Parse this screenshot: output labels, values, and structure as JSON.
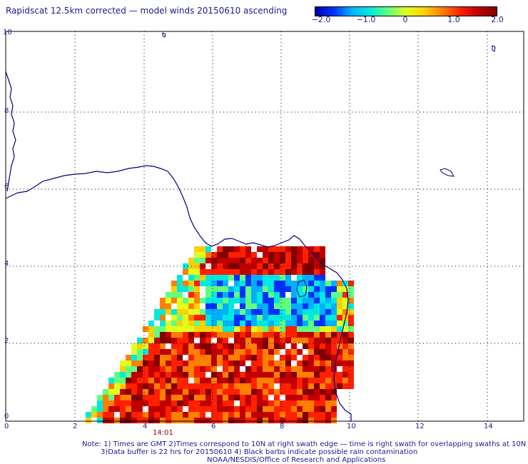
{
  "title": "Rapidscat 12.5km corrected — model winds 20150610 ascending",
  "colorbar": {
    "ticks": [
      "−2.0",
      "−1.0",
      "0",
      "1.0",
      "2.0"
    ],
    "colors": [
      "#0000a0",
      "#0030ff",
      "#00b0ff",
      "#00e8e0",
      "#60ff80",
      "#e0ff20",
      "#ffd000",
      "#ff8000",
      "#ff2000",
      "#c00000",
      "#800000"
    ]
  },
  "x_axis": {
    "ticks": [
      "0",
      "2",
      "4",
      "6",
      "8",
      "10",
      "12",
      "14"
    ]
  },
  "y_axis": {
    "ticks": [
      "0",
      "2",
      "4",
      "6",
      "8",
      "10"
    ]
  },
  "time_label": "14:01",
  "notes": {
    "line1": "Note: 1) Times are GMT 2)Times correspond to 10N at right swath edge — time is right swath for overlapping swaths at 10N",
    "line2": "3)Data buffer is 22 hrs for 20150610 4) Black barbs indicate possible rain contamination",
    "line3": "NOAA/NESDIS/Office of Research and Applications"
  },
  "colors": {
    "text": "#1a1a8c",
    "coast": "#000080",
    "grid": "#000000",
    "time": "#8b0000"
  }
}
